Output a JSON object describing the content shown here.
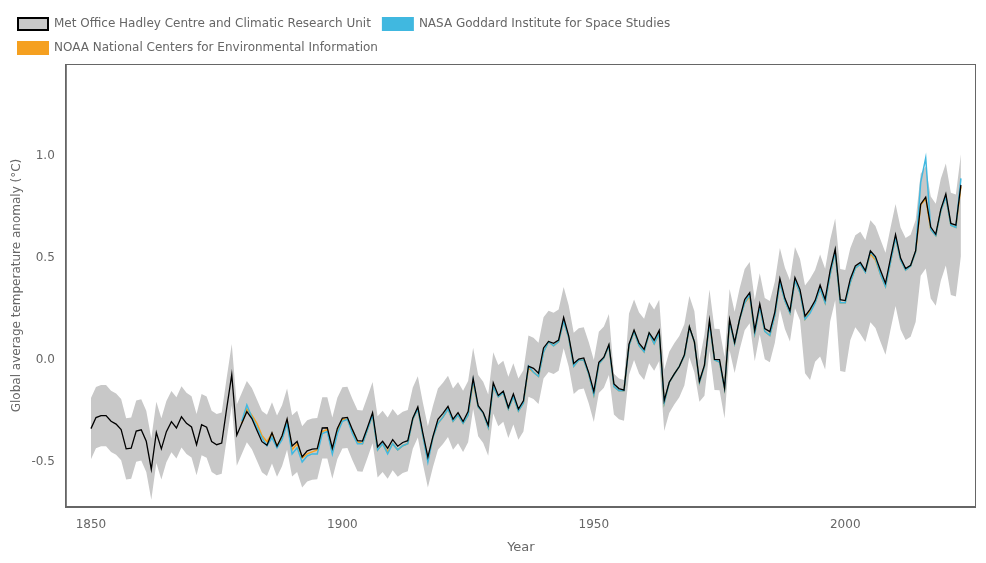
{
  "chart_data": {
    "type": "line",
    "xlabel": "Year",
    "ylabel": "Global average temperature anomaly (°C)",
    "xlim": [
      1845,
      2026
    ],
    "ylim": [
      -0.72,
      1.45
    ],
    "xticks": [
      1850,
      1900,
      1950,
      2000
    ],
    "yticks": [
      -0.5,
      {
        "value": 0,
        "label": "0.0"
      },
      0.5,
      {
        "value": 1,
        "label": "1.0"
      }
    ],
    "grid": false,
    "legend": "upper left",
    "x": [
      1850,
      1851,
      1852,
      1853,
      1854,
      1855,
      1856,
      1857,
      1858,
      1859,
      1860,
      1861,
      1862,
      1863,
      1864,
      1865,
      1866,
      1867,
      1868,
      1869,
      1870,
      1871,
      1872,
      1873,
      1874,
      1875,
      1876,
      1877,
      1878,
      1879,
      1880,
      1881,
      1882,
      1883,
      1884,
      1885,
      1886,
      1887,
      1888,
      1889,
      1890,
      1891,
      1892,
      1893,
      1894,
      1895,
      1896,
      1897,
      1898,
      1899,
      1900,
      1901,
      1902,
      1903,
      1904,
      1905,
      1906,
      1907,
      1908,
      1909,
      1910,
      1911,
      1912,
      1913,
      1914,
      1915,
      1916,
      1917,
      1918,
      1919,
      1920,
      1921,
      1922,
      1923,
      1924,
      1925,
      1926,
      1927,
      1928,
      1929,
      1930,
      1931,
      1932,
      1933,
      1934,
      1935,
      1936,
      1937,
      1938,
      1939,
      1940,
      1941,
      1942,
      1943,
      1944,
      1945,
      1946,
      1947,
      1948,
      1949,
      1950,
      1951,
      1952,
      1953,
      1954,
      1955,
      1956,
      1957,
      1958,
      1959,
      1960,
      1961,
      1962,
      1963,
      1964,
      1965,
      1966,
      1967,
      1968,
      1969,
      1970,
      1971,
      1972,
      1973,
      1974,
      1975,
      1976,
      1977,
      1978,
      1979,
      1980,
      1981,
      1982,
      1983,
      1984,
      1985,
      1986,
      1987,
      1988,
      1989,
      1990,
      1991,
      1992,
      1993,
      1994,
      1995,
      1996,
      1997,
      1998,
      1999,
      2000,
      2001,
      2002,
      2003,
      2004,
      2005,
      2006,
      2007,
      2008,
      2009,
      2010,
      2011,
      2012,
      2013,
      2014,
      2015,
      2016,
      2017,
      2018,
      2019,
      2020,
      2021,
      2022,
      2023
    ],
    "series": [
      {
        "name": "Met Office Hadley Centre and Climatic Research Unit",
        "color": "#000000",
        "values": [
          -0.336,
          -0.282,
          -0.272,
          -0.272,
          -0.3,
          -0.314,
          -0.341,
          -0.435,
          -0.432,
          -0.348,
          -0.342,
          -0.398,
          -0.535,
          -0.355,
          -0.435,
          -0.351,
          -0.302,
          -0.333,
          -0.278,
          -0.31,
          -0.328,
          -0.415,
          -0.317,
          -0.329,
          -0.399,
          -0.415,
          -0.407,
          -0.236,
          -0.072,
          -0.368,
          -0.31,
          -0.253,
          -0.287,
          -0.344,
          -0.4,
          -0.418,
          -0.357,
          -0.422,
          -0.371,
          -0.289,
          -0.421,
          -0.399,
          -0.475,
          -0.445,
          -0.436,
          -0.434,
          -0.333,
          -0.332,
          -0.432,
          -0.335,
          -0.284,
          -0.281,
          -0.341,
          -0.395,
          -0.397,
          -0.329,
          -0.258,
          -0.425,
          -0.398,
          -0.432,
          -0.39,
          -0.422,
          -0.404,
          -0.395,
          -0.285,
          -0.23,
          -0.358,
          -0.475,
          -0.375,
          -0.29,
          -0.261,
          -0.227,
          -0.29,
          -0.258,
          -0.301,
          -0.253,
          -0.09,
          -0.224,
          -0.257,
          -0.319,
          -0.112,
          -0.174,
          -0.153,
          -0.232,
          -0.166,
          -0.24,
          -0.2,
          -0.03,
          -0.041,
          -0.065,
          0.059,
          0.091,
          0.082,
          0.098,
          0.208,
          0.118,
          -0.017,
          0.005,
          0.01,
          -0.063,
          -0.154,
          -0.011,
          0.014,
          0.076,
          -0.117,
          -0.14,
          -0.148,
          0.078,
          0.147,
          0.083,
          0.052,
          0.134,
          0.097,
          0.145,
          -0.198,
          -0.109,
          -0.068,
          -0.032,
          0.025,
          0.163,
          0.089,
          -0.104,
          -0.025,
          0.195,
          0.003,
          0.002,
          -0.137,
          0.198,
          0.086,
          0.202,
          0.296,
          0.33,
          0.144,
          0.275,
          0.154,
          0.139,
          0.235,
          0.399,
          0.302,
          0.241,
          0.404,
          0.345,
          0.215,
          0.248,
          0.291,
          0.367,
          0.297,
          0.439,
          0.543,
          0.296,
          0.291,
          0.397,
          0.461,
          0.478,
          0.438,
          0.535,
          0.507,
          0.44,
          0.376,
          0.498,
          0.614,
          0.499,
          0.448,
          0.464,
          0.536,
          0.763,
          0.798,
          0.651,
          0.616,
          0.738,
          0.813,
          0.669,
          0.661,
          0.858
        ],
        "band": {
          "color": "#c8c8c8",
          "upper": [
            -0.186,
            -0.132,
            -0.122,
            -0.122,
            -0.15,
            -0.164,
            -0.191,
            -0.285,
            -0.282,
            -0.198,
            -0.192,
            -0.248,
            -0.385,
            -0.205,
            -0.285,
            -0.201,
            -0.152,
            -0.183,
            -0.128,
            -0.16,
            -0.178,
            -0.265,
            -0.167,
            -0.179,
            -0.249,
            -0.265,
            -0.257,
            -0.086,
            0.078,
            -0.218,
            -0.16,
            -0.103,
            -0.137,
            -0.194,
            -0.25,
            -0.268,
            -0.207,
            -0.272,
            -0.221,
            -0.139,
            -0.271,
            -0.249,
            -0.325,
            -0.295,
            -0.286,
            -0.284,
            -0.183,
            -0.182,
            -0.282,
            -0.185,
            -0.134,
            -0.131,
            -0.191,
            -0.245,
            -0.247,
            -0.179,
            -0.108,
            -0.275,
            -0.248,
            -0.282,
            -0.24,
            -0.272,
            -0.254,
            -0.245,
            -0.135,
            -0.08,
            -0.208,
            -0.325,
            -0.225,
            -0.14,
            -0.111,
            -0.077,
            -0.14,
            -0.108,
            -0.151,
            -0.103,
            0.06,
            -0.074,
            -0.107,
            -0.169,
            0.038,
            -0.024,
            -0.003,
            -0.082,
            -0.016,
            -0.09,
            -0.05,
            0.12,
            0.109,
            0.085,
            0.209,
            0.241,
            0.232,
            0.248,
            0.358,
            0.268,
            0.133,
            0.155,
            0.16,
            0.087,
            0.0,
            0.139,
            0.164,
            0.226,
            -0.067,
            -0.09,
            -0.098,
            0.228,
            0.297,
            0.233,
            0.202,
            0.284,
            0.247,
            0.295,
            -0.048,
            0.041,
            0.082,
            0.118,
            0.175,
            0.313,
            0.239,
            -0.004,
            0.125,
            0.345,
            0.153,
            0.152,
            0.013,
            0.348,
            0.236,
            0.352,
            0.446,
            0.48,
            0.294,
            0.425,
            0.304,
            0.289,
            0.385,
            0.549,
            0.452,
            0.391,
            0.554,
            0.495,
            0.365,
            0.398,
            0.441,
            0.517,
            0.447,
            0.589,
            0.693,
            0.446,
            0.441,
            0.547,
            0.611,
            0.628,
            0.588,
            0.685,
            0.657,
            0.59,
            0.526,
            0.648,
            0.764,
            0.649,
            0.598,
            0.614,
            0.686,
            0.913,
            0.948,
            0.801,
            0.766,
            0.888,
            0.963,
            0.819,
            0.811,
            1.008
          ],
          "lower": [
            -0.486,
            -0.432,
            -0.422,
            -0.422,
            -0.45,
            -0.464,
            -0.491,
            -0.585,
            -0.582,
            -0.498,
            -0.492,
            -0.548,
            -0.685,
            -0.505,
            -0.585,
            -0.501,
            -0.452,
            -0.483,
            -0.428,
            -0.46,
            -0.478,
            -0.565,
            -0.467,
            -0.479,
            -0.549,
            -0.565,
            -0.557,
            -0.386,
            -0.222,
            -0.518,
            -0.46,
            -0.403,
            -0.437,
            -0.494,
            -0.55,
            -0.568,
            -0.507,
            -0.572,
            -0.521,
            -0.439,
            -0.571,
            -0.549,
            -0.625,
            -0.595,
            -0.586,
            -0.584,
            -0.483,
            -0.482,
            -0.582,
            -0.485,
            -0.434,
            -0.431,
            -0.491,
            -0.545,
            -0.547,
            -0.479,
            -0.408,
            -0.575,
            -0.548,
            -0.582,
            -0.54,
            -0.572,
            -0.554,
            -0.545,
            -0.435,
            -0.38,
            -0.508,
            -0.625,
            -0.525,
            -0.44,
            -0.411,
            -0.377,
            -0.44,
            -0.408,
            -0.451,
            -0.403,
            -0.24,
            -0.374,
            -0.407,
            -0.469,
            -0.262,
            -0.324,
            -0.303,
            -0.382,
            -0.316,
            -0.39,
            -0.35,
            -0.18,
            -0.191,
            -0.215,
            -0.091,
            -0.059,
            -0.068,
            -0.052,
            0.058,
            -0.032,
            -0.167,
            -0.145,
            -0.14,
            -0.213,
            -0.304,
            -0.161,
            -0.136,
            -0.074,
            -0.267,
            -0.29,
            -0.298,
            -0.072,
            0.0,
            -0.067,
            -0.098,
            -0.016,
            -0.053,
            -0.005,
            -0.348,
            -0.259,
            -0.218,
            -0.182,
            -0.125,
            0.013,
            -0.061,
            -0.204,
            -0.175,
            0.045,
            -0.147,
            -0.148,
            -0.287,
            0.048,
            -0.064,
            0.052,
            0.146,
            0.18,
            -0.006,
            0.125,
            0.004,
            -0.011,
            0.085,
            0.249,
            0.152,
            0.091,
            0.254,
            0.195,
            -0.065,
            -0.098,
            -0.009,
            0.017,
            -0.047,
            0.189,
            0.293,
            -0.054,
            -0.059,
            0.097,
            0.161,
            0.128,
            0.088,
            0.185,
            0.157,
            0.09,
            0.026,
            0.148,
            0.264,
            0.149,
            0.098,
            0.114,
            0.186,
            0.413,
            0.448,
            0.301,
            0.266,
            0.388,
            0.463,
            0.319,
            0.311,
            0.508
          ]
        }
      },
      {
        "name": "NOAA National Centers for Environmental Information",
        "color": "#f5a020",
        "values": [
          null,
          null,
          null,
          null,
          null,
          null,
          null,
          null,
          null,
          null,
          null,
          null,
          null,
          null,
          null,
          null,
          null,
          null,
          null,
          null,
          null,
          null,
          null,
          null,
          null,
          null,
          null,
          null,
          null,
          null,
          -0.31,
          -0.24,
          -0.27,
          -0.31,
          -0.37,
          -0.4,
          -0.36,
          -0.42,
          -0.38,
          -0.3,
          -0.44,
          -0.41,
          -0.48,
          -0.46,
          -0.45,
          -0.44,
          -0.35,
          -0.34,
          -0.45,
          -0.35,
          -0.29,
          -0.29,
          -0.35,
          -0.4,
          -0.41,
          -0.34,
          -0.27,
          -0.44,
          -0.41,
          -0.45,
          -0.41,
          -0.44,
          -0.42,
          -0.41,
          -0.29,
          -0.24,
          -0.37,
          -0.49,
          -0.38,
          -0.31,
          -0.28,
          -0.24,
          -0.3,
          -0.27,
          -0.31,
          -0.27,
          -0.11,
          -0.23,
          -0.26,
          -0.33,
          -0.13,
          -0.18,
          -0.16,
          -0.24,
          -0.18,
          -0.25,
          -0.21,
          -0.04,
          -0.06,
          -0.08,
          0.04,
          0.09,
          0.07,
          0.09,
          0.19,
          0.11,
          -0.03,
          0.0,
          0.0,
          -0.07,
          -0.17,
          -0.02,
          0.01,
          0.07,
          -0.13,
          -0.15,
          -0.15,
          0.07,
          0.14,
          0.07,
          0.04,
          0.13,
          0.08,
          0.13,
          -0.21,
          -0.11,
          -0.07,
          -0.03,
          0.02,
          0.16,
          0.09,
          -0.11,
          -0.03,
          0.18,
          0.0,
          -0.01,
          -0.14,
          0.19,
          0.08,
          0.2,
          0.28,
          0.31,
          0.13,
          0.26,
          0.14,
          0.12,
          0.22,
          0.38,
          0.29,
          0.23,
          0.39,
          0.33,
          0.2,
          0.24,
          0.28,
          0.35,
          0.28,
          0.42,
          0.53,
          0.28,
          0.28,
          0.38,
          0.45,
          0.47,
          0.43,
          0.52,
          0.49,
          0.42,
          0.36,
          0.48,
          0.6,
          0.49,
          0.44,
          0.46,
          0.53,
          0.76,
          0.79,
          0.64,
          0.61,
          0.73,
          0.8,
          0.66,
          0.65,
          0.85
        ]
      },
      {
        "name": "NASA Goddard Institute for Space Studies",
        "color": "#40b8e0",
        "values": [
          null,
          null,
          null,
          null,
          null,
          null,
          null,
          null,
          null,
          null,
          null,
          null,
          null,
          null,
          null,
          null,
          null,
          null,
          null,
          null,
          null,
          null,
          null,
          null,
          null,
          null,
          null,
          null,
          null,
          null,
          -0.3,
          -0.22,
          -0.28,
          -0.33,
          -0.38,
          -0.42,
          -0.38,
          -0.43,
          -0.39,
          -0.31,
          -0.46,
          -0.43,
          -0.5,
          -0.47,
          -0.46,
          -0.46,
          -0.36,
          -0.35,
          -0.46,
          -0.36,
          -0.3,
          -0.29,
          -0.36,
          -0.41,
          -0.41,
          -0.34,
          -0.27,
          -0.44,
          -0.41,
          -0.46,
          -0.41,
          -0.44,
          -0.42,
          -0.41,
          -0.29,
          -0.24,
          -0.37,
          -0.5,
          -0.38,
          -0.31,
          -0.28,
          -0.24,
          -0.3,
          -0.27,
          -0.31,
          -0.27,
          -0.1,
          -0.23,
          -0.26,
          -0.33,
          -0.13,
          -0.18,
          -0.16,
          -0.24,
          -0.18,
          -0.25,
          -0.21,
          -0.03,
          -0.06,
          -0.08,
          0.04,
          0.09,
          0.07,
          0.09,
          0.19,
          0.11,
          -0.03,
          0.0,
          0.0,
          -0.07,
          -0.17,
          -0.02,
          0.01,
          0.07,
          -0.13,
          -0.15,
          -0.15,
          0.07,
          0.14,
          0.07,
          0.04,
          0.13,
          0.08,
          0.13,
          -0.21,
          -0.11,
          -0.07,
          -0.03,
          0.02,
          0.16,
          0.09,
          -0.11,
          -0.03,
          0.18,
          0.0,
          -0.01,
          -0.14,
          0.19,
          0.08,
          0.2,
          0.28,
          0.32,
          0.13,
          0.26,
          0.14,
          0.12,
          0.22,
          0.38,
          0.29,
          0.23,
          0.39,
          0.33,
          0.2,
          0.23,
          0.28,
          0.35,
          0.28,
          0.42,
          0.53,
          0.28,
          0.28,
          0.38,
          0.45,
          0.47,
          0.43,
          0.53,
          0.5,
          0.42,
          0.36,
          0.48,
          0.6,
          0.49,
          0.44,
          0.46,
          0.53,
          0.87,
          0.99,
          0.64,
          0.61,
          0.73,
          0.8,
          0.66,
          0.65,
          0.89
        ]
      }
    ]
  }
}
